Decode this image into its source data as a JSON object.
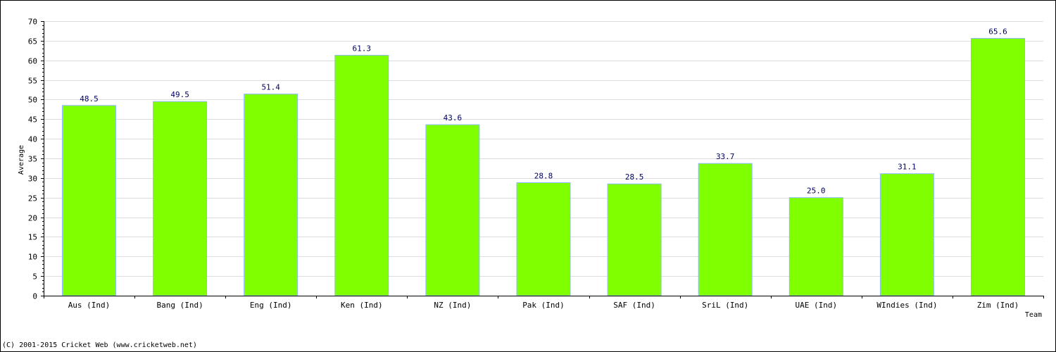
{
  "chart_data": {
    "type": "bar",
    "categories": [
      "Aus (Ind)",
      "Bang (Ind)",
      "Eng (Ind)",
      "Ken (Ind)",
      "NZ (Ind)",
      "Pak (Ind)",
      "SAF (Ind)",
      "SriL (Ind)",
      "UAE (Ind)",
      "WIndies (Ind)",
      "Zim (Ind)"
    ],
    "values": [
      48.5,
      49.5,
      51.4,
      61.3,
      43.6,
      28.8,
      28.5,
      33.7,
      25.0,
      31.1,
      65.6
    ],
    "value_labels": [
      "48.5",
      "49.5",
      "51.4",
      "61.3",
      "43.6",
      "28.8",
      "28.5",
      "33.7",
      "25.0",
      "31.1",
      "65.6"
    ],
    "title": "",
    "xlabel": "Team",
    "ylabel": "Average",
    "ylim": [
      0,
      70
    ],
    "y_ticks": [
      "0",
      "5",
      "10",
      "15",
      "20",
      "25",
      "30",
      "35",
      "40",
      "45",
      "50",
      "55",
      "60",
      "65",
      "70"
    ],
    "grid": true,
    "legend": "none",
    "colors": {
      "bar_fill": "#80ff00",
      "bar_outline": "#8fb8ff",
      "grid": "#dddddd",
      "axis": "#000000",
      "value_label": "#000066"
    }
  },
  "footer": {
    "copyright": "(C) 2001-2015 Cricket Web (www.cricketweb.net)"
  }
}
